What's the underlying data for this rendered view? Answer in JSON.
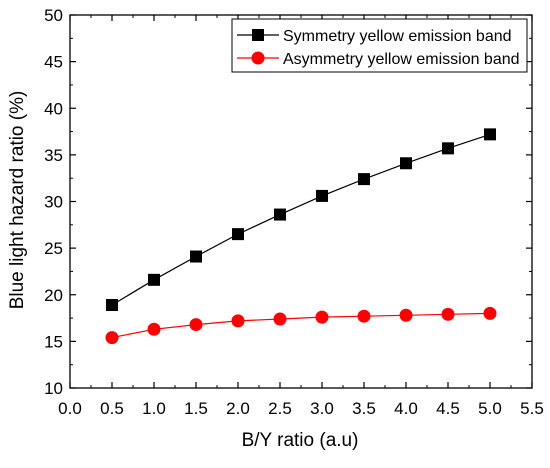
{
  "chart_data": {
    "type": "line",
    "title": "",
    "xlabel": "B/Y ratio (a.u)",
    "ylabel": "Blue light hazard ratio (%)",
    "xlim": [
      0.0,
      5.5
    ],
    "ylim": [
      10,
      50
    ],
    "xticks": [
      "0.0",
      "0.5",
      "1.0",
      "1.5",
      "2.0",
      "2.5",
      "3.0",
      "3.5",
      "4.0",
      "4.5",
      "5.0",
      "5.5"
    ],
    "yticks": [
      "10",
      "15",
      "20",
      "25",
      "30",
      "35",
      "40",
      "45",
      "50"
    ],
    "grid": false,
    "legend_position": "top-right",
    "x": [
      0.5,
      1.0,
      1.5,
      2.0,
      2.5,
      3.0,
      3.5,
      4.0,
      4.5,
      5.0
    ],
    "series": [
      {
        "name": "Symmetry yellow emission band",
        "color": "#000000",
        "marker": "square",
        "values": [
          18.9,
          21.6,
          24.1,
          26.5,
          28.6,
          30.6,
          32.4,
          34.1,
          35.7,
          37.2
        ]
      },
      {
        "name": "Asymmetry yellow emission band",
        "color": "#ff0000",
        "marker": "circle",
        "values": [
          15.4,
          16.3,
          16.8,
          17.2,
          17.4,
          17.6,
          17.7,
          17.8,
          17.9,
          18.0
        ]
      }
    ]
  }
}
